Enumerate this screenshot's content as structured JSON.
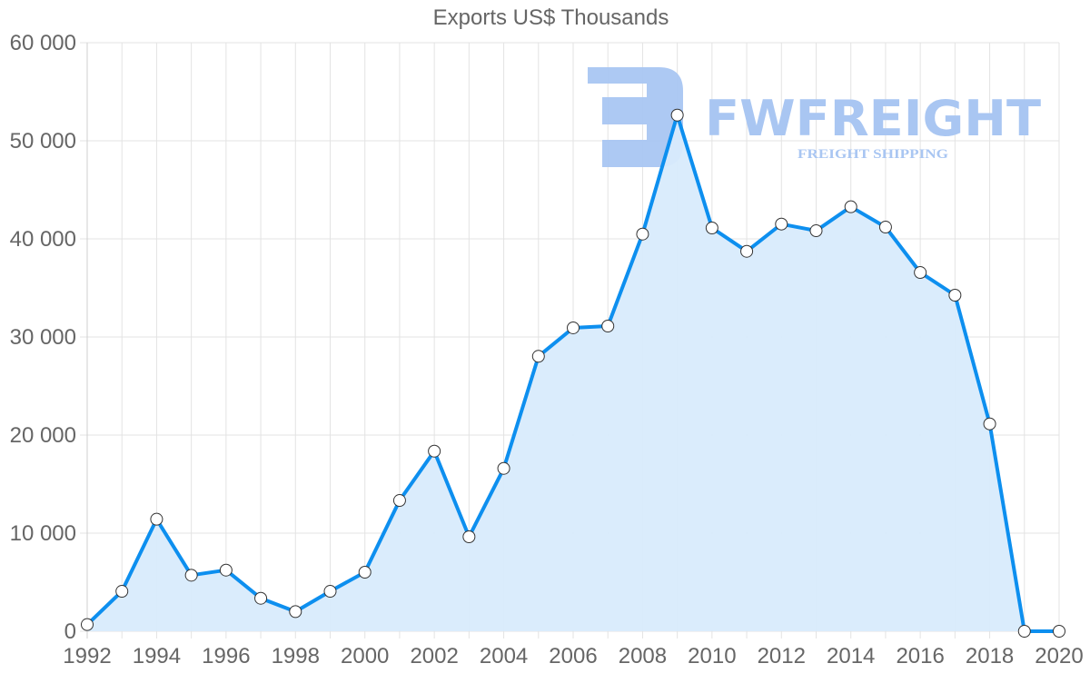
{
  "chart_data": {
    "type": "area",
    "title": "Exports US$ Thousands",
    "xlabel": "",
    "ylabel": "",
    "x": [
      1992,
      1993,
      1994,
      1995,
      1996,
      1997,
      1998,
      1999,
      2000,
      2001,
      2002,
      2003,
      2004,
      2005,
      2006,
      2007,
      2008,
      2009,
      2010,
      2011,
      2012,
      2013,
      2014,
      2015,
      2016,
      2017,
      2018,
      2019,
      2020
    ],
    "series": [
      {
        "name": "Exports US$ Thousands",
        "values": [
          680,
          4070,
          11420,
          5710,
          6230,
          3360,
          2000,
          4070,
          6020,
          13330,
          18360,
          9630,
          16600,
          28030,
          30930,
          31110,
          40490,
          52620,
          41110,
          38730,
          41510,
          40830,
          43270,
          41200,
          36570,
          34260,
          21140,
          0,
          0
        ],
        "line_color": "#0d8fef",
        "fill_color": "#d8ebfc",
        "marker_fill": "#ffffff",
        "marker_stroke": "#333333"
      }
    ],
    "ylim": [
      0,
      60000
    ],
    "xlim": [
      1992,
      2020
    ],
    "y_ticks": [
      "0",
      "10 000",
      "20 000",
      "30 000",
      "40 000",
      "50 000",
      "60 000"
    ],
    "x_ticks": [
      "1992",
      "1994",
      "1996",
      "1998",
      "2000",
      "2002",
      "2004",
      "2006",
      "2008",
      "2010",
      "2012",
      "2014",
      "2016",
      "2018",
      "2020"
    ],
    "grid": true,
    "legend": "none"
  },
  "watermark": {
    "brand": "FWFREIGHT",
    "tagline": "FREIGHT SHIPPING",
    "color": "#a9c6f2"
  }
}
